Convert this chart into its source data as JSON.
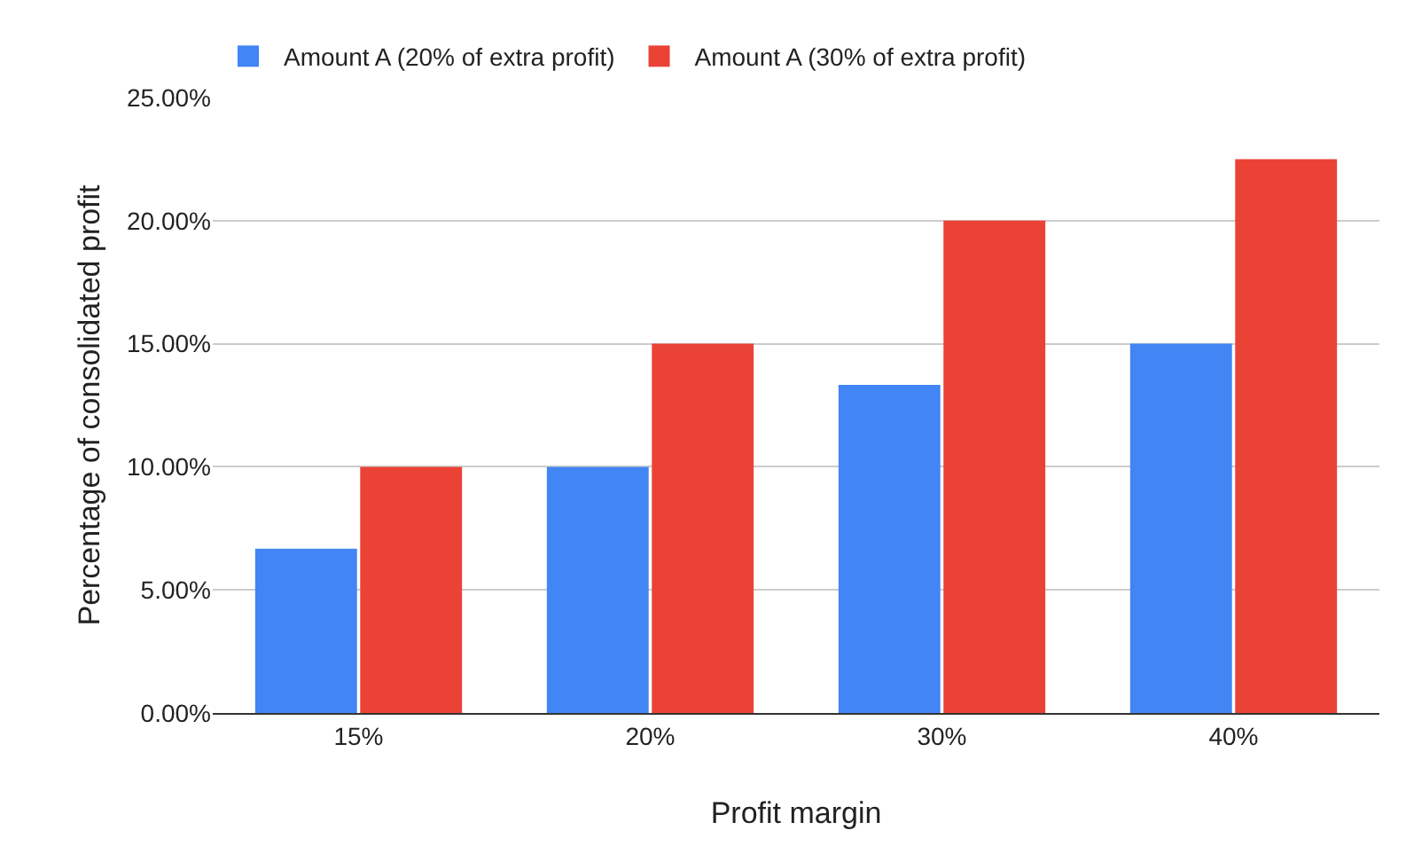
{
  "chart_data": {
    "type": "bar",
    "xlabel": "Profit margin",
    "ylabel": "Percentage of consolidated profit",
    "categories": [
      "15%",
      "20%",
      "30%",
      "40%"
    ],
    "series": [
      {
        "name": "Amount A (20% of extra profit)",
        "color": "#4285f4",
        "values": [
          6.67,
          10,
          13.33,
          15
        ]
      },
      {
        "name": "Amount A (30% of extra profit)",
        "color": "#ea4335",
        "values": [
          10,
          15,
          20,
          22.5
        ]
      }
    ],
    "ylim": [
      0,
      25
    ],
    "yticks": [
      {
        "value": 0,
        "label": "0.00%"
      },
      {
        "value": 5,
        "label": "5.00%"
      },
      {
        "value": 10,
        "label": "10.00%"
      },
      {
        "value": 15,
        "label": "15.00%"
      },
      {
        "value": 20,
        "label": "20.00%"
      },
      {
        "value": 25,
        "label": "25.00%"
      }
    ],
    "grid": "y",
    "legend": "top"
  }
}
